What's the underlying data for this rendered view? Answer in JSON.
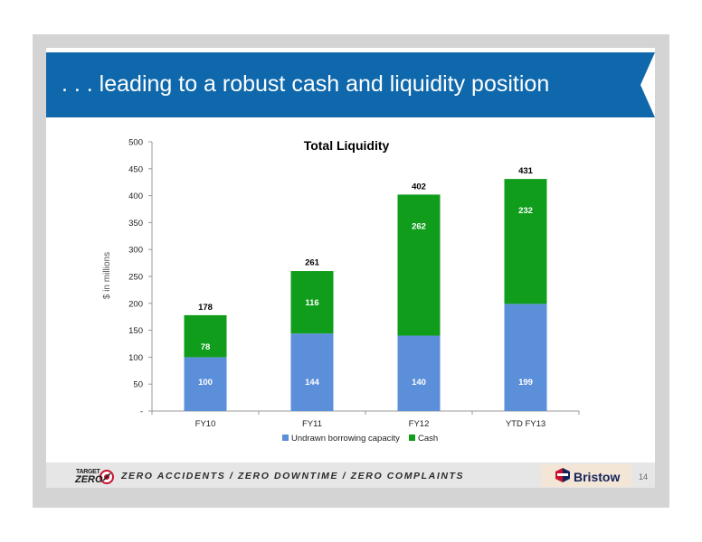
{
  "slide": {
    "title": ". . . leading to a robust cash and liquidity position",
    "page_number": "14"
  },
  "footer": {
    "logo_line1": "TARGET",
    "logo_line2": "ZERO",
    "tagline": "ZERO ACCIDENTS / ZERO DOWNTIME / ZERO COMPLAINTS",
    "brand": "Bristow"
  },
  "colors": {
    "title_bar": "#0f68ab",
    "undrawn": "#5b8fd9",
    "cash": "#0f9d1b"
  },
  "chart_data": {
    "type": "bar",
    "stacked": true,
    "title": "Total Liquidity",
    "ylabel": "$ in millions",
    "xlabel": "",
    "ylim": [
      0,
      500
    ],
    "yticks": [
      "-",
      "50",
      "100",
      "150",
      "200",
      "250",
      "300",
      "350",
      "400",
      "450",
      "500"
    ],
    "categories": [
      "FY10",
      "FY11",
      "FY12",
      "YTD FY13"
    ],
    "series": [
      {
        "name": "Undrawn  borrowing capacity",
        "values": [
          100,
          144,
          140,
          199
        ],
        "color": "#5b8fd9"
      },
      {
        "name": "Cash",
        "values": [
          78,
          116,
          262,
          232
        ],
        "color": "#0f9d1b"
      }
    ],
    "totals": [
      178,
      261,
      402,
      431
    ],
    "legend_position": "bottom",
    "grid": false
  }
}
